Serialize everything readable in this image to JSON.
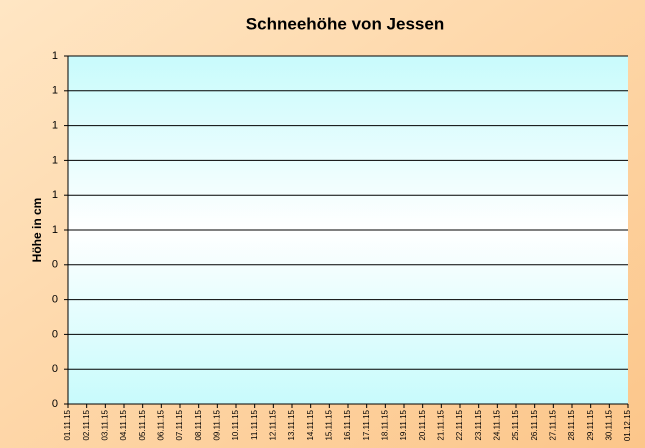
{
  "chart_data": {
    "type": "line",
    "title": "Schneehöhe von Jessen",
    "y_label": "Höhe in cm",
    "categories": [
      "01.11.15",
      "02.11.15",
      "03.11.15",
      "04.11.15",
      "05.11.15",
      "06.11.15",
      "07.11.15",
      "08.11.15",
      "09.11.15",
      "10.11.15",
      "11.11.15",
      "12.11.15",
      "13.11.15",
      "14.11.15",
      "15.11.15",
      "16.11.15",
      "17.11.15",
      "18.11.15",
      "19.11.15",
      "20.11.15",
      "21.11.15",
      "22.11.15",
      "23.11.15",
      "24.11.15",
      "25.11.15",
      "26.11.15",
      "27.11.15",
      "28.11.15",
      "29.11.15",
      "30.11.15",
      "01.12.15"
    ],
    "ylim": [
      0,
      1
    ],
    "yticks": [
      0,
      {
        "value": 0.1,
        "label": "0"
      },
      {
        "value": 0.2,
        "label": "0"
      },
      {
        "value": 0.3,
        "label": "0"
      },
      {
        "value": 0.4,
        "label": "0"
      },
      {
        "value": 0.5,
        "label": "1"
      },
      {
        "value": 0.6,
        "label": "1"
      },
      {
        "value": 0.7,
        "label": "1"
      },
      {
        "value": 0.8,
        "label": "1"
      },
      {
        "value": 0.9,
        "label": "1"
      },
      1
    ],
    "grid": true
  }
}
